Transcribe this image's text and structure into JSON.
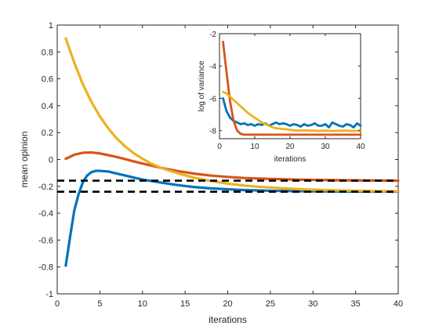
{
  "colors": {
    "blue": "#0072BD",
    "orange": "#D95319",
    "yellow": "#EDB120",
    "reference": "#000000",
    "axis": "#262626"
  },
  "chart_data": [
    {
      "type": "line",
      "xlabel": "iterations",
      "ylabel": "mean opinion",
      "xlim": [
        0,
        40
      ],
      "ylim": [
        -1,
        1
      ],
      "xticks": [
        0,
        5,
        10,
        15,
        20,
        25,
        30,
        35,
        40
      ],
      "yticks": [
        -1,
        -0.8,
        -0.6,
        -0.4,
        -0.2,
        0,
        0.2,
        0.4,
        0.6,
        0.8,
        1
      ],
      "grid": false,
      "series": [
        {
          "color": "blue",
          "x": [
            1,
            1.5,
            2,
            2.5,
            3,
            3.5,
            4,
            4.5,
            5,
            6,
            7,
            8,
            9,
            10,
            12,
            14,
            16,
            18,
            20,
            22,
            25,
            28,
            30,
            32,
            35,
            38,
            40
          ],
          "y": [
            -0.79,
            -0.58,
            -0.38,
            -0.26,
            -0.17,
            -0.12,
            -0.095,
            -0.085,
            -0.085,
            -0.09,
            -0.105,
            -0.12,
            -0.135,
            -0.15,
            -0.17,
            -0.19,
            -0.205,
            -0.215,
            -0.222,
            -0.228,
            -0.233,
            -0.236,
            -0.237,
            -0.238,
            -0.239,
            -0.239,
            -0.24
          ]
        },
        {
          "color": "orange",
          "x": [
            1,
            2,
            3,
            4,
            5,
            6,
            7,
            8,
            9,
            10,
            12,
            14,
            16,
            18,
            20,
            22,
            25,
            28,
            30,
            32,
            35,
            38,
            40
          ],
          "y": [
            0.005,
            0.035,
            0.05,
            0.052,
            0.045,
            0.032,
            0.018,
            0.002,
            -0.015,
            -0.03,
            -0.06,
            -0.085,
            -0.105,
            -0.12,
            -0.13,
            -0.138,
            -0.145,
            -0.15,
            -0.152,
            -0.154,
            -0.156,
            -0.157,
            -0.158
          ]
        },
        {
          "color": "yellow",
          "x": [
            1,
            2,
            3,
            4,
            5,
            6,
            7,
            8,
            9,
            10,
            11,
            12,
            13,
            14,
            15,
            16,
            18,
            20,
            22,
            24,
            26,
            28,
            30,
            32,
            35,
            38,
            40
          ],
          "y": [
            0.9,
            0.72,
            0.56,
            0.43,
            0.32,
            0.23,
            0.155,
            0.095,
            0.045,
            0.005,
            -0.03,
            -0.058,
            -0.08,
            -0.1,
            -0.118,
            -0.135,
            -0.16,
            -0.18,
            -0.195,
            -0.205,
            -0.213,
            -0.22,
            -0.225,
            -0.229,
            -0.233,
            -0.236,
            -0.237
          ]
        },
        {
          "color": "reference",
          "dashed": true,
          "x": [
            0,
            40
          ],
          "y": [
            -0.158,
            -0.158
          ]
        },
        {
          "color": "reference",
          "dashed": true,
          "x": [
            0,
            40
          ],
          "y": [
            -0.24,
            -0.24
          ]
        }
      ]
    },
    {
      "type": "line",
      "xlabel": "iterations",
      "ylabel": "log of variance",
      "xlim": [
        0,
        40
      ],
      "ylim": [
        -8.5,
        -2
      ],
      "xticks": [
        0,
        10,
        20,
        30,
        40
      ],
      "yticks": [
        -8,
        -6,
        -4,
        -2
      ],
      "grid": false,
      "series": [
        {
          "color": "blue",
          "x": [
            1,
            2,
            3,
            4,
            5,
            6,
            7,
            8,
            9,
            10,
            11,
            12,
            13,
            14,
            15,
            16,
            17,
            18,
            19,
            20,
            21,
            22,
            23,
            24,
            25,
            26,
            27,
            28,
            29,
            30,
            31,
            32,
            33,
            34,
            35,
            36,
            37,
            38,
            39,
            40
          ],
          "y": [
            -6.0,
            -6.8,
            -7.2,
            -7.4,
            -7.5,
            -7.6,
            -7.55,
            -7.65,
            -7.6,
            -7.7,
            -7.6,
            -7.65,
            -7.55,
            -7.7,
            -7.6,
            -7.5,
            -7.6,
            -7.55,
            -7.6,
            -7.7,
            -7.6,
            -7.65,
            -7.75,
            -7.6,
            -7.7,
            -7.65,
            -7.55,
            -7.7,
            -7.7,
            -7.6,
            -7.8,
            -7.5,
            -7.6,
            -7.7,
            -7.75,
            -7.6,
            -7.65,
            -7.8,
            -7.55,
            -7.7
          ]
        },
        {
          "color": "orange",
          "x": [
            1,
            2,
            3,
            4,
            5,
            6,
            7,
            8,
            9,
            10,
            12,
            14,
            16,
            18,
            20,
            22,
            25,
            28,
            30,
            32,
            35,
            38,
            40
          ],
          "y": [
            -2.5,
            -4.4,
            -6.2,
            -7.4,
            -8.0,
            -8.2,
            -8.25,
            -8.25,
            -8.25,
            -8.25,
            -8.25,
            -8.25,
            -8.25,
            -8.25,
            -8.25,
            -8.25,
            -8.25,
            -8.25,
            -8.25,
            -8.25,
            -8.25,
            -8.25,
            -8.25
          ]
        },
        {
          "color": "yellow",
          "x": [
            1,
            2,
            3,
            4,
            5,
            6,
            7,
            8,
            9,
            10,
            11,
            12,
            13,
            14,
            15,
            16,
            18,
            20,
            22,
            24,
            26,
            28,
            30,
            32,
            35,
            38,
            40
          ],
          "y": [
            -5.6,
            -5.7,
            -5.9,
            -6.1,
            -6.3,
            -6.5,
            -6.7,
            -6.9,
            -7.05,
            -7.2,
            -7.35,
            -7.5,
            -7.6,
            -7.7,
            -7.8,
            -7.85,
            -7.9,
            -7.95,
            -8.0,
            -7.98,
            -8.0,
            -8.02,
            -8.0,
            -8.02,
            -8.0,
            -8.02,
            -8.0
          ]
        }
      ]
    }
  ]
}
